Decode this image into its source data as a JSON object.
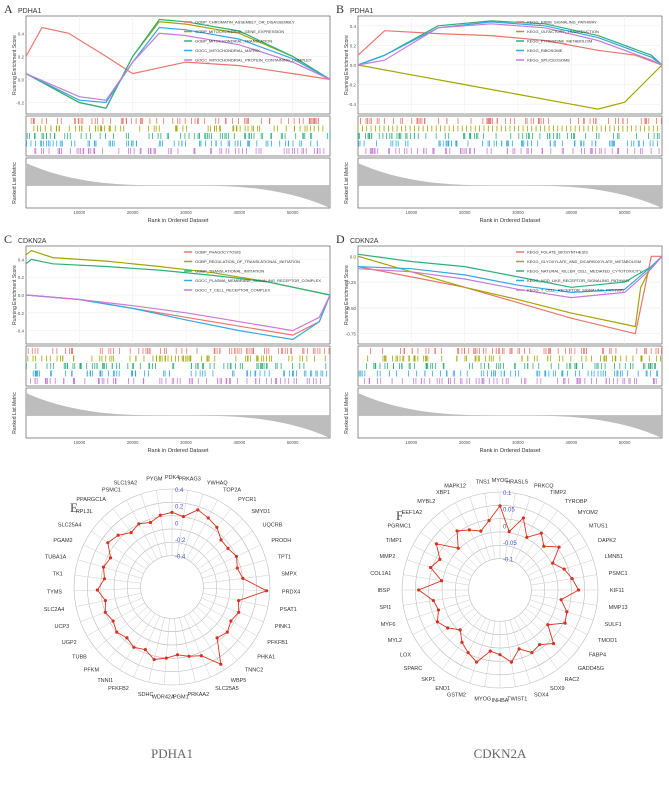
{
  "figure": {
    "panels": [
      {
        "letter": "A",
        "gene": "PDHA1",
        "ylabel_top": "Running Enrichment Score",
        "ylabel_bottom": "Ranked List Metric",
        "xlabel": "Rank in Ordered Dataset",
        "yticks": [
          "0.4",
          "0.2",
          "0.0",
          "-0.2"
        ],
        "xticks": [
          "10000",
          "20000",
          "30000",
          "40000",
          "50000"
        ],
        "legend": [
          {
            "label": "GOBP_CHROMATIN_ASSEMBLY_OR_DISASSEMBLY",
            "color": "#e8766d"
          },
          {
            "label": "GOBP_MITOCHONDRIAL_GENE_EXPRESSION",
            "color": "#a3a500"
          },
          {
            "label": "GOBP_MITOCHONDRIAL_TRANSLATION",
            "color": "#2cb07a"
          },
          {
            "label": "GOCC_MITOCHONDRIAL_MATRIX",
            "color": "#34a8e0"
          },
          {
            "label": "GOCC_MITOCHONDRIAL_PROTEIN_CONTAINING_COMPLEX",
            "color": "#c77cd6"
          }
        ]
      },
      {
        "letter": "B",
        "gene": "PDHA1",
        "ylabel_top": "Running Enrichment Score",
        "ylabel_bottom": "Ranked List Metric",
        "xlabel": "Rank in Ordered Dataset",
        "yticks": [
          "0.4",
          "0.2",
          "0.0",
          "-0.2",
          "-0.4"
        ],
        "xticks": [
          "10000",
          "20000",
          "30000",
          "40000",
          "50000"
        ],
        "legend": [
          {
            "label": "KEGG_ERBB_SIGNALING_PATHWAY",
            "color": "#e8766d"
          },
          {
            "label": "KEGG_OLFACTORY_TRANSDUCTION",
            "color": "#a3a500"
          },
          {
            "label": "KEGG_PYRIMIDINE_METABOLISM",
            "color": "#2cb07a"
          },
          {
            "label": "KEGG_RIBOSOME",
            "color": "#34a8e0"
          },
          {
            "label": "KEGG_SPLICEOSOME",
            "color": "#c77cd6"
          }
        ]
      },
      {
        "letter": "C",
        "gene": "CDKN2A",
        "ylabel_top": "Running Enrichment Score",
        "ylabel_bottom": "Ranked List Metric",
        "xlabel": "Rank in Ordered Dataset",
        "yticks": [
          "0.4",
          "0.2",
          "0.0",
          "-0.2",
          "-0.4"
        ],
        "xticks": [
          "10000",
          "20000",
          "30000",
          "40000",
          "50000"
        ],
        "legend": [
          {
            "label": "GOBP_PHAGOCYTOSIS",
            "color": "#e8766d"
          },
          {
            "label": "GOBP_REGULATION_OF_TRANSLATIONAL_INITIATION",
            "color": "#a3a500"
          },
          {
            "label": "GOBP_TRANSLATIONAL_INITIATION",
            "color": "#2cb07a"
          },
          {
            "label": "GOCC_PLASMA_MEMBRANE_SIGNALING_RECEPTOR_COMPLEX",
            "color": "#34a8e0"
          },
          {
            "label": "GOCC_T_CELL_RECEPTOR_COMPLEX",
            "color": "#c77cd6"
          }
        ]
      },
      {
        "letter": "D",
        "gene": "CDKN2A",
        "ylabel_top": "Running Enrichment Score",
        "ylabel_bottom": "Ranked List Metric",
        "xlabel": "Rank in Ordered Dataset",
        "yticks": [
          "0.0",
          "-0.25",
          "-0.50",
          "-0.75"
        ],
        "xticks": [
          "10000",
          "20000",
          "30000",
          "40000",
          "50000"
        ],
        "legend": [
          {
            "label": "KEGG_FOLATE_BIOSYNTHESIS",
            "color": "#e8766d"
          },
          {
            "label": "KEGG_GLYOXYLATE_AND_DICARBOXYLATE_METABOLISM",
            "color": "#a3a500"
          },
          {
            "label": "KEGG_NATURAL_KILLER_CELL_MEDIATED_CYTOTOXICITY",
            "color": "#2cb07a"
          },
          {
            "label": "KEGG_NOD_LIKE_RECEPTOR_SIGNALING_PATHWAY",
            "color": "#34a8e0"
          },
          {
            "label": "KEGG_T_CELL_RECEPTOR_SIGNALING_PATHWAY",
            "color": "#c77cd6"
          }
        ]
      }
    ],
    "radar_E": {
      "letter": "E",
      "title": "PDHA1",
      "ticks": [
        "0.4",
        "0.2",
        "0",
        "-0.2",
        "-0.4"
      ]
    },
    "radar_F": {
      "letter": "F",
      "title": "CDKN2A",
      "ticks": [
        "0.1",
        "0.05",
        "0",
        "-0.05",
        "-0.1"
      ]
    }
  },
  "chart_data": [
    {
      "type": "line",
      "title": "PDHA1",
      "panel": "A",
      "xlabel": "Rank in Ordered Dataset",
      "ylabel": "Running Enrichment Score",
      "ylim": [
        -0.3,
        0.55
      ],
      "series": [
        {
          "name": "GOBP_CHROMATIN_ASSEMBLY_OR_DISASSEMBLY",
          "x": [
            0,
            3000,
            8000,
            15000,
            20000,
            30000,
            40000,
            50000,
            57000
          ],
          "values": [
            0.2,
            0.45,
            0.4,
            0.2,
            0.05,
            0.15,
            0.12,
            0.05,
            0
          ]
        },
        {
          "name": "GOBP_MITOCHONDRIAL_GENE_EXPRESSION",
          "x": [
            0,
            10000,
            15000,
            20000,
            25000,
            30000,
            40000,
            50000,
            57000
          ],
          "values": [
            0.05,
            -0.2,
            -0.25,
            0.2,
            0.5,
            0.48,
            0.4,
            0.2,
            0
          ]
        },
        {
          "name": "GOBP_MITOCHONDRIAL_TRANSLATION",
          "x": [
            0,
            10000,
            15000,
            20000,
            25000,
            30000,
            40000,
            50000,
            57000
          ],
          "values": [
            0.05,
            -0.2,
            -0.25,
            0.2,
            0.52,
            0.5,
            0.42,
            0.2,
            0
          ]
        },
        {
          "name": "GOCC_MITOCHONDRIAL_MATRIX",
          "x": [
            0,
            10000,
            15000,
            20000,
            25000,
            30000,
            40000,
            50000,
            57000
          ],
          "values": [
            0.05,
            -0.18,
            -0.2,
            0.15,
            0.45,
            0.43,
            0.35,
            0.18,
            0
          ]
        },
        {
          "name": "GOCC_MITOCHONDRIAL_PROTEIN_CONTAINING_COMPLEX",
          "x": [
            0,
            10000,
            15000,
            20000,
            25000,
            30000,
            40000,
            50000,
            57000
          ],
          "values": [
            0.05,
            -0.15,
            -0.18,
            0.15,
            0.4,
            0.38,
            0.3,
            0.15,
            0
          ]
        }
      ]
    },
    {
      "type": "line",
      "title": "PDHA1",
      "panel": "B",
      "xlabel": "Rank in Ordered Dataset",
      "ylabel": "Running Enrichment Score",
      "ylim": [
        -0.5,
        0.5
      ],
      "series": [
        {
          "name": "KEGG_ERBB_SIGNALING_PATHWAY",
          "x": [
            0,
            5000,
            15000,
            25000,
            35000,
            45000,
            52000,
            57000
          ],
          "values": [
            0.1,
            0.35,
            0.32,
            0.3,
            0.25,
            0.15,
            0.1,
            0
          ]
        },
        {
          "name": "KEGG_OLFACTORY_TRANSDUCTION",
          "x": [
            0,
            10000,
            20000,
            30000,
            40000,
            45000,
            50000,
            57000
          ],
          "values": [
            0,
            -0.1,
            -0.2,
            -0.3,
            -0.4,
            -0.45,
            -0.38,
            0
          ]
        },
        {
          "name": "KEGG_PYRIMIDINE_METABOLISM",
          "x": [
            0,
            5000,
            15000,
            25000,
            35000,
            45000,
            55000,
            57000
          ],
          "values": [
            0,
            0.1,
            0.4,
            0.45,
            0.42,
            0.3,
            0.1,
            0
          ]
        },
        {
          "name": "KEGG_RIBOSOME",
          "x": [
            0,
            5000,
            15000,
            25000,
            35000,
            45000,
            55000,
            57000
          ],
          "values": [
            0,
            0.1,
            0.38,
            0.44,
            0.4,
            0.28,
            0.08,
            0
          ]
        },
        {
          "name": "KEGG_SPLICEOSOME",
          "x": [
            0,
            5000,
            15000,
            25000,
            35000,
            45000,
            55000,
            57000
          ],
          "values": [
            0,
            0.05,
            0.38,
            0.42,
            0.38,
            0.25,
            0.05,
            0
          ]
        }
      ]
    },
    {
      "type": "line",
      "title": "CDKN2A",
      "panel": "C",
      "xlabel": "Rank in Ordered Dataset",
      "ylabel": "Running Enrichment Score",
      "ylim": [
        -0.55,
        0.55
      ],
      "series": [
        {
          "name": "GOBP_PHAGOCYTOSIS",
          "x": [
            0,
            10000,
            20000,
            30000,
            40000,
            50000,
            55000,
            57000
          ],
          "values": [
            0,
            -0.05,
            -0.15,
            -0.25,
            -0.35,
            -0.45,
            -0.3,
            0
          ]
        },
        {
          "name": "GOBP_REGULATION_OF_TRANSLATIONAL_INITIATION",
          "x": [
            0,
            1000,
            5000,
            15000,
            25000,
            35000,
            45000,
            57000
          ],
          "values": [
            0.45,
            0.5,
            0.42,
            0.38,
            0.32,
            0.25,
            0.15,
            0
          ]
        },
        {
          "name": "GOBP_TRANSLATIONAL_INITIATION",
          "x": [
            0,
            1000,
            5000,
            15000,
            25000,
            35000,
            45000,
            57000
          ],
          "values": [
            0.35,
            0.4,
            0.35,
            0.32,
            0.28,
            0.22,
            0.15,
            0
          ]
        },
        {
          "name": "GOCC_PLASMA_MEMBRANE_SIGNALING_RECEPTOR_COMPLEX",
          "x": [
            0,
            10000,
            20000,
            30000,
            40000,
            50000,
            55000,
            57000
          ],
          "values": [
            0,
            -0.05,
            -0.15,
            -0.28,
            -0.4,
            -0.5,
            -0.3,
            0
          ]
        },
        {
          "name": "GOCC_T_CELL_RECEPTOR_COMPLEX",
          "x": [
            0,
            10000,
            20000,
            30000,
            40000,
            50000,
            55000,
            57000
          ],
          "values": [
            0,
            -0.05,
            -0.12,
            -0.2,
            -0.3,
            -0.4,
            -0.25,
            0
          ]
        }
      ]
    },
    {
      "type": "line",
      "title": "CDKN2A",
      "panel": "D",
      "xlabel": "Rank in Ordered Dataset",
      "ylabel": "Running Enrichment Score",
      "ylim": [
        -0.85,
        0.1
      ],
      "series": [
        {
          "name": "KEGG_FOLATE_BIOSYNTHESIS",
          "x": [
            0,
            10000,
            20000,
            30000,
            40000,
            52000,
            53000,
            55000,
            57000
          ],
          "values": [
            -0.1,
            -0.2,
            -0.3,
            -0.45,
            -0.6,
            -0.75,
            -0.5,
            0,
            0
          ]
        },
        {
          "name": "KEGG_GLYOXYLATE_AND_DICARBOXYLATE_METABOLISM",
          "x": [
            0,
            10000,
            20000,
            30000,
            40000,
            52000,
            53000,
            55000,
            57000
          ],
          "values": [
            0,
            -0.15,
            -0.3,
            -0.42,
            -0.55,
            -0.68,
            -0.3,
            -0.1,
            0
          ]
        },
        {
          "name": "KEGG_NATURAL_KILLER_CELL_MEDIATED_CYTOTOXICITY",
          "x": [
            0,
            10000,
            20000,
            30000,
            40000,
            50000,
            55000,
            57000
          ],
          "values": [
            0.02,
            -0.05,
            -0.1,
            -0.2,
            -0.3,
            -0.25,
            -0.1,
            0
          ]
        },
        {
          "name": "KEGG_NOD_LIKE_RECEPTOR_SIGNALING_PATHWAY",
          "x": [
            0,
            10000,
            20000,
            30000,
            40000,
            50000,
            55000,
            57000
          ],
          "values": [
            -0.1,
            -0.12,
            -0.18,
            -0.28,
            -0.35,
            -0.32,
            -0.1,
            0
          ]
        },
        {
          "name": "KEGG_T_CELL_RECEPTOR_SIGNALING_PATHWAY",
          "x": [
            0,
            10000,
            20000,
            30000,
            40000,
            50000,
            55000,
            57000
          ],
          "values": [
            -0.12,
            -0.15,
            -0.22,
            -0.32,
            -0.4,
            -0.35,
            -0.12,
            0
          ]
        }
      ]
    },
    {
      "type": "radar",
      "title": "PDHA1",
      "panel": "E",
      "range": [
        -0.5,
        0.5
      ],
      "categories": [
        "PDK4",
        "PRKAG3",
        "YWHAQ",
        "TOP2A",
        "PYCR1",
        "SMYD1",
        "UQCRB",
        "PRODH",
        "TPT1",
        "SMPX",
        "PRDX4",
        "PSAT1",
        "PINK1",
        "PFKFB1",
        "PHKA1",
        "TNNC2",
        "WBP5",
        "SLC25A5",
        "PRKAA2",
        "PGM1",
        "WDR42A",
        "SDHC",
        "PFKFB2",
        "TNNI1",
        "PFKM",
        "TUBB",
        "UGP2",
        "UCP3",
        "SLC2A4",
        "TYMS",
        "TK1",
        "TUBA1A",
        "PGAM2",
        "SLC25A4",
        "RPL3L",
        "PPARGC1A",
        "PSMC1",
        "SLC19A2",
        "PYGM"
      ],
      "values": [
        0.15,
        0.1,
        0.25,
        0.2,
        0.15,
        0.05,
        0.05,
        0.1,
        0.05,
        0.1,
        0.45,
        0.05,
        0.1,
        0.05,
        0.1,
        0.05,
        0.4,
        0.15,
        0.1,
        0.05,
        0.1,
        0.15,
        0.05,
        0.1,
        0.05,
        0.1,
        0.05,
        0.1,
        0.05,
        0.15,
        0.05,
        0.1,
        0.05,
        0.2,
        0.15,
        0.05,
        0.1,
        0.05,
        0.12
      ]
    },
    {
      "type": "radar",
      "title": "CDKN2A",
      "panel": "F",
      "range": [
        -0.12,
        0.12
      ],
      "categories": [
        "MYOC",
        "HRASLS",
        "PRKCQ",
        "TIMP2",
        "TYROBP",
        "MYOM2",
        "MTUS1",
        "DAPK2",
        "LMNB1",
        "PSMC1",
        "KIF11",
        "MMP13",
        "SULF1",
        "TMOD1",
        "FABP4",
        "GADD45G",
        "RAC2",
        "SOX9",
        "SOX4",
        "TWIST1",
        "INHBA",
        "MYOG",
        "GSTM2",
        "END1",
        "SKP1",
        "SPARC",
        "LOX",
        "MYL2",
        "MYF6",
        "SPI1",
        "IBSP",
        "COL1A1",
        "MMP2",
        "TIMP1",
        "PGRMC1",
        "EEF1A2",
        "MYBL2",
        "XBP1",
        "MAPK12",
        "TNS1"
      ],
      "values": [
        0.07,
        -0.02,
        0.04,
        -0.02,
        0.02,
        -0.01,
        0.03,
        -0.02,
        0.01,
        0.03,
        0.05,
        -0.01,
        0.02,
        0.03,
        -0.02,
        0.04,
        0.01,
        0.02,
        -0.01,
        0.03,
        0.0,
        -0.01,
        0.04,
        0.02,
        0.0,
        -0.03,
        0.0,
        0.02,
        0.0,
        0.01,
        0.06,
        -0.02,
        0.03,
        0.01,
        0.05,
        -0.02,
        0.03,
        0.01,
        -0.01,
        0.02
      ]
    }
  ]
}
